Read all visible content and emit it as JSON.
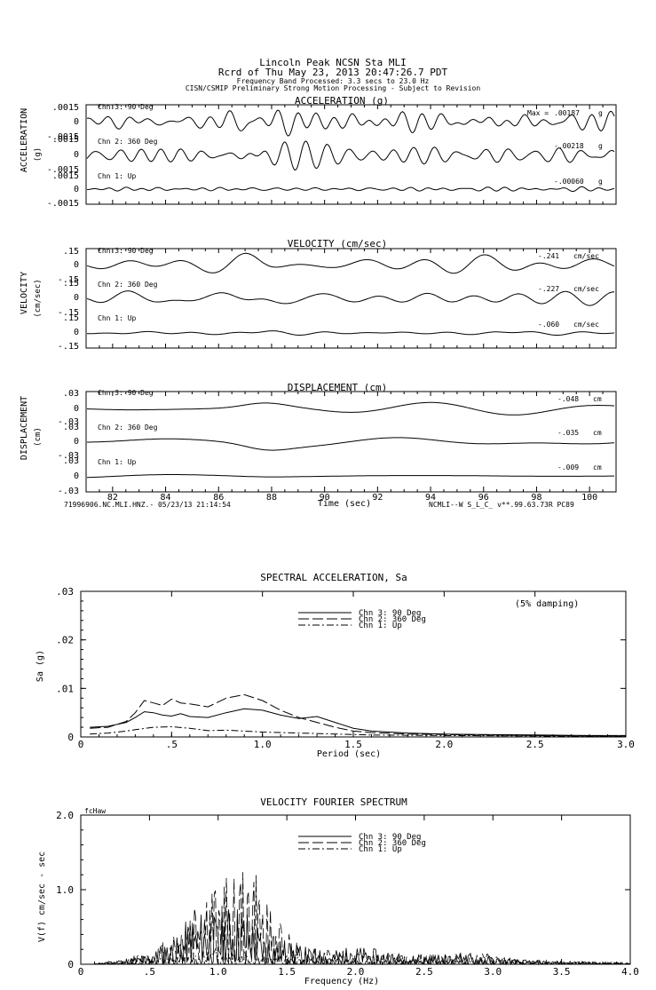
{
  "header": {
    "title_line1": "Lincoln Peak    NCSN Sta MLI",
    "title_line2": "Rcrd of Thu May 23, 2013 20:47:26.7 PDT",
    "title_line3": "Frequency Band Processed: 3.3 secs to 23.0 Hz",
    "title_line4": "CISN/CSMIP Preliminary Strong Motion Processing - Subject to Revision"
  },
  "footer": {
    "left": "71996906.NC.MLI.HNZ.- 05/23/13 21:14:54",
    "right": "NCMLI--W  S_L_C_  v**.99.63.73R PC89"
  },
  "chart_data": [
    {
      "type": "line",
      "title": "ACCELERATION (g)",
      "ylabel": "ACCELERATION",
      "units": "(g)",
      "ylim": [
        -0.0015,
        0.0015
      ],
      "ytick_labels": [
        ".0015",
        "0",
        "-.0015"
      ],
      "channels": [
        {
          "name": "Chn 3: 90 Deg",
          "max_label": "Max =",
          "max_value": ".00187",
          "unit": "g"
        },
        {
          "name": "Chn 2: 360 Deg",
          "max_label": "",
          "max_value": "-.00218",
          "unit": "g"
        },
        {
          "name": "Chn 1: Up",
          "max_label": "",
          "max_value": "-.00060",
          "unit": "g"
        }
      ]
    },
    {
      "type": "line",
      "title": "VELOCITY (cm/sec)",
      "ylabel": "VELOCITY",
      "units": "(cm/sec)",
      "ylim": [
        -0.15,
        0.15
      ],
      "ytick_labels": [
        ".15",
        "0",
        "-.15"
      ],
      "channels": [
        {
          "name": "Chn 3: 90 Deg",
          "max_label": "",
          "max_value": "-.241",
          "unit": "cm/sec"
        },
        {
          "name": "Chn 2: 360 Deg",
          "max_label": "",
          "max_value": "-.227",
          "unit": "cm/sec"
        },
        {
          "name": "Chn 1: Up",
          "max_label": "",
          "max_value": "-.060",
          "unit": "cm/sec"
        }
      ]
    },
    {
      "type": "line",
      "title": "DISPLACEMENT (cm)",
      "ylabel": "DISPLACEMENT",
      "units": "(cm)",
      "ylim": [
        -0.03,
        0.03
      ],
      "ytick_labels": [
        ".03",
        "0",
        "-.03"
      ],
      "xlabel": "Time (sec)",
      "xlim": [
        81,
        101
      ],
      "xtick_values": [
        82,
        84,
        86,
        88,
        90,
        92,
        94,
        96,
        98,
        100
      ],
      "xtick_labels": [
        "82",
        "84",
        "86",
        "88",
        "90",
        "92",
        "94",
        "96",
        "98",
        "100"
      ],
      "channels": [
        {
          "name": "Chn 3: 90 Deg",
          "max_label": "",
          "max_value": "-.048",
          "unit": "cm"
        },
        {
          "name": "Chn 2: 360 Deg",
          "max_label": "",
          "max_value": "-.035",
          "unit": "cm"
        },
        {
          "name": "Chn 1: Up",
          "max_label": "",
          "max_value": "-.009",
          "unit": "cm"
        }
      ]
    },
    {
      "type": "line",
      "title": "SPECTRAL ACCELERATION, Sa",
      "xlabel": "Period (sec)",
      "ylabel": "Sa (g)",
      "note": "(5% damping)",
      "xlim": [
        0,
        3.0
      ],
      "ylim": [
        0,
        0.03
      ],
      "xtick_values": [
        0.5,
        1.0,
        1.5,
        2.0,
        2.5,
        3.0
      ],
      "xtick_labels": [
        ".5",
        "1.0",
        "1.5",
        "2.0",
        "2.5",
        "3.0"
      ],
      "ytick_values": [
        0,
        0.01,
        0.02,
        0.03
      ],
      "ytick_labels": [
        "0",
        ".01",
        ".02",
        ".03"
      ],
      "series": [
        {
          "name": "Chn 3: 90 Deg",
          "style": "solid",
          "x": [
            0.05,
            0.15,
            0.25,
            0.3,
            0.35,
            0.4,
            0.45,
            0.5,
            0.55,
            0.6,
            0.7,
            0.8,
            0.9,
            1.0,
            1.1,
            1.2,
            1.3,
            1.4,
            1.5,
            1.6,
            1.8,
            2.0,
            2.2,
            2.5,
            2.8,
            3.0
          ],
          "y": [
            0.002,
            0.0022,
            0.003,
            0.004,
            0.0052,
            0.005,
            0.0045,
            0.0043,
            0.0048,
            0.0042,
            0.004,
            0.005,
            0.0058,
            0.0055,
            0.0045,
            0.0038,
            0.0042,
            0.003,
            0.0018,
            0.0012,
            0.0008,
            0.0006,
            0.0005,
            0.0004,
            0.0003,
            0.0003
          ]
        },
        {
          "name": "Chn 2: 360 Deg",
          "style": "long-dash",
          "x": [
            0.05,
            0.15,
            0.25,
            0.3,
            0.35,
            0.4,
            0.45,
            0.5,
            0.55,
            0.6,
            0.7,
            0.8,
            0.9,
            1.0,
            1.1,
            1.2,
            1.3,
            1.4,
            1.5,
            1.6,
            1.8,
            2.0,
            2.2,
            2.5,
            2.8,
            3.0
          ],
          "y": [
            0.0018,
            0.002,
            0.0032,
            0.005,
            0.0075,
            0.007,
            0.0065,
            0.0078,
            0.007,
            0.0068,
            0.0062,
            0.008,
            0.0087,
            0.0075,
            0.0055,
            0.004,
            0.003,
            0.002,
            0.0012,
            0.0009,
            0.0006,
            0.0005,
            0.0004,
            0.0003,
            0.0002,
            0.0002
          ]
        },
        {
          "name": "Chn 1: Up",
          "style": "dash-dot",
          "x": [
            0.05,
            0.15,
            0.25,
            0.3,
            0.4,
            0.5,
            0.6,
            0.7,
            0.8,
            0.9,
            1.0,
            1.2,
            1.4,
            1.6,
            2.0,
            2.5,
            3.0
          ],
          "y": [
            0.0006,
            0.0008,
            0.0012,
            0.0015,
            0.002,
            0.0021,
            0.0018,
            0.0013,
            0.0014,
            0.0012,
            0.001,
            0.0008,
            0.0006,
            0.0004,
            0.0003,
            0.0002,
            0.0001
          ]
        }
      ]
    },
    {
      "type": "line",
      "title": "VELOCITY FOURIER SPECTRUM",
      "xlabel": "Frequency (Hz)",
      "ylabel": "V(f)   cm/sec - sec",
      "corner_label": "fcHaw",
      "xlim": [
        0,
        4.0
      ],
      "ylim": [
        0,
        2.0
      ],
      "xtick_values": [
        0.5,
        1.0,
        1.5,
        2.0,
        2.5,
        3.0,
        3.5,
        4.0
      ],
      "xtick_labels": [
        ".5",
        "1.0",
        "1.5",
        "2.0",
        "2.5",
        "3.0",
        "3.5",
        "4.0"
      ],
      "ytick_values": [
        0,
        1.0,
        2.0
      ],
      "ytick_labels": [
        "0",
        "1.0",
        "2.0"
      ],
      "series": [
        {
          "name": "Chn 3: 90 Deg",
          "style": "solid",
          "x": [
            0.1,
            0.3,
            0.5,
            0.7,
            0.8,
            0.9,
            1.0,
            1.1,
            1.2,
            1.3,
            1.4,
            1.6,
            1.8,
            2.0,
            2.4,
            2.8,
            3.2,
            3.6,
            4.0
          ],
          "y": [
            0.01,
            0.04,
            0.12,
            0.3,
            0.55,
            0.6,
            0.5,
            0.7,
            0.65,
            0.4,
            0.3,
            0.2,
            0.15,
            0.2,
            0.1,
            0.12,
            0.05,
            0.03,
            0.02
          ]
        },
        {
          "name": "Chn 2: 360 Deg",
          "style": "long-dash",
          "x": [
            0.1,
            0.3,
            0.5,
            0.7,
            0.8,
            0.9,
            1.0,
            1.1,
            1.2,
            1.25,
            1.3,
            1.4,
            1.6,
            1.8,
            2.0,
            2.4,
            2.8,
            3.2,
            3.6,
            4.0
          ],
          "y": [
            0.01,
            0.05,
            0.15,
            0.4,
            0.75,
            0.95,
            0.85,
            1.05,
            1.0,
            1.2,
            0.85,
            0.55,
            0.25,
            0.15,
            0.15,
            0.1,
            0.15,
            0.05,
            0.03,
            0.02
          ]
        },
        {
          "name": "Chn 1: Up",
          "style": "dash-dot",
          "x": [
            0.1,
            0.3,
            0.5,
            0.7,
            0.9,
            1.0,
            1.1,
            1.2,
            1.4,
            1.6,
            2.0,
            2.5,
            3.0,
            3.5,
            4.0
          ],
          "y": [
            0.005,
            0.02,
            0.05,
            0.1,
            0.15,
            0.18,
            0.2,
            0.15,
            0.1,
            0.08,
            0.05,
            0.04,
            0.03,
            0.02,
            0.01
          ]
        }
      ]
    }
  ]
}
